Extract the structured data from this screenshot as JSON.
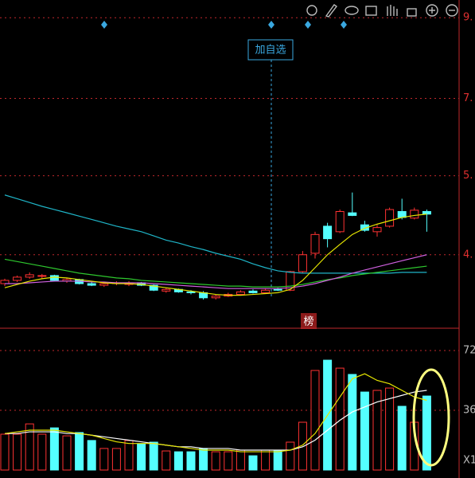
{
  "chart_data": {
    "type": "candlestick",
    "button": "加自选",
    "marker": "榜",
    "up_color": "#ff3232",
    "down_color": "#54ffff",
    "grid_color": "#c0282d",
    "log": true,
    "ylim": [
      3.42,
      9.51
    ],
    "yticks": [
      {
        "value": 9.0,
        "label": "9."
      },
      {
        "value": 7.0,
        "label": "7."
      },
      {
        "value": 5.5,
        "label": "5."
      },
      {
        "value": 4.3,
        "label": "4."
      }
    ],
    "open": [
      3.93,
      3.97,
      4.01,
      4.02,
      4.03,
      3.96,
      3.98,
      3.93,
      3.91,
      3.93,
      3.92,
      3.94,
      3.91,
      3.84,
      3.86,
      3.83,
      3.82,
      3.76,
      3.78,
      3.8,
      3.84,
      3.82,
      3.86,
      3.85,
      4.08,
      4.32,
      4.7,
      4.62,
      4.9,
      4.72,
      4.62,
      4.7,
      4.92,
      4.82,
      4.92
    ],
    "high": [
      3.99,
      4.03,
      4.07,
      4.05,
      4.04,
      4.0,
      3.99,
      3.95,
      3.95,
      3.96,
      3.96,
      3.95,
      3.92,
      3.88,
      3.87,
      3.85,
      3.84,
      3.8,
      3.82,
      3.85,
      3.86,
      3.87,
      3.88,
      4.09,
      4.35,
      4.62,
      4.75,
      4.95,
      5.22,
      4.78,
      4.72,
      4.98,
      5.12,
      4.98,
      4.95
    ],
    "low": [
      3.9,
      3.95,
      3.99,
      3.99,
      3.96,
      3.94,
      3.92,
      3.9,
      3.89,
      3.91,
      3.9,
      3.9,
      3.84,
      3.82,
      3.82,
      3.8,
      3.74,
      3.74,
      3.77,
      3.79,
      3.81,
      3.81,
      3.84,
      3.84,
      4.06,
      4.25,
      4.4,
      4.6,
      4.85,
      4.62,
      4.55,
      4.68,
      4.8,
      4.8,
      4.62
    ],
    "close": [
      3.97,
      4.01,
      4.04,
      4.03,
      3.97,
      3.98,
      3.93,
      3.91,
      3.93,
      3.94,
      3.94,
      3.91,
      3.85,
      3.86,
      3.83,
      3.82,
      3.76,
      3.78,
      3.8,
      3.83,
      3.82,
      3.85,
      3.85,
      4.08,
      4.3,
      4.58,
      4.52,
      4.92,
      4.86,
      4.64,
      4.68,
      4.95,
      4.83,
      4.94,
      4.88
    ],
    "ma": [
      {
        "color": "#1fb5c8",
        "values": [
          5.18,
          5.12,
          5.06,
          5.0,
          4.95,
          4.9,
          4.85,
          4.8,
          4.75,
          4.7,
          4.66,
          4.62,
          4.56,
          4.5,
          4.46,
          4.41,
          4.37,
          4.32,
          4.28,
          4.24,
          4.18,
          4.13,
          4.09,
          4.07,
          4.06,
          4.06,
          4.06,
          4.06,
          4.06,
          4.06,
          4.06,
          4.06,
          4.07,
          4.07,
          4.07
        ]
      },
      {
        "color": "#2ec82e",
        "values": [
          4.24,
          4.21,
          4.18,
          4.15,
          4.12,
          4.09,
          4.06,
          4.04,
          4.02,
          4.0,
          3.99,
          3.97,
          3.96,
          3.95,
          3.94,
          3.93,
          3.92,
          3.91,
          3.9,
          3.9,
          3.89,
          3.89,
          3.89,
          3.9,
          3.92,
          3.95,
          3.98,
          4.0,
          4.03,
          4.05,
          4.07,
          4.09,
          4.11,
          4.13,
          4.15
        ]
      },
      {
        "color": "#d060e0",
        "values": [
          3.93,
          3.93,
          3.94,
          3.95,
          3.96,
          3.96,
          3.96,
          3.95,
          3.95,
          3.94,
          3.94,
          3.94,
          3.93,
          3.92,
          3.91,
          3.9,
          3.89,
          3.88,
          3.87,
          3.87,
          3.87,
          3.87,
          3.87,
          3.88,
          3.9,
          3.93,
          3.97,
          4.01,
          4.06,
          4.1,
          4.14,
          4.18,
          4.22,
          4.26,
          4.3
        ]
      },
      {
        "color": "#e6e600",
        "values": [
          3.88,
          3.92,
          3.96,
          3.99,
          4.01,
          4.0,
          3.98,
          3.96,
          3.94,
          3.93,
          3.93,
          3.92,
          3.9,
          3.88,
          3.86,
          3.84,
          3.82,
          3.8,
          3.79,
          3.79,
          3.8,
          3.81,
          3.82,
          3.86,
          3.97,
          4.13,
          4.3,
          4.44,
          4.58,
          4.67,
          4.73,
          4.78,
          4.83,
          4.86,
          4.88
        ]
      }
    ],
    "volume_ylim": [
      0,
      79.2
    ],
    "volume_yticks": [
      36,
      72
    ],
    "volume_unit": "X1",
    "volume": [
      21.6,
      21.6,
      27.8,
      21.6,
      25.4,
      20.6,
      22.6,
      17.8,
      13,
      13,
      17.8,
      15.8,
      16.8,
      11.5,
      11,
      11,
      13,
      11,
      11,
      12,
      8.6,
      12,
      11.5,
      16.8,
      28.8,
      60,
      66.2,
      61.4,
      57.6,
      47,
      48,
      49.4,
      38.4,
      28.8,
      44.6
    ],
    "volume_ma": [
      {
        "color": "#ffffff",
        "values": [
          22,
          22,
          23,
          23,
          23,
          22,
          22,
          21,
          20,
          19,
          18,
          17,
          16,
          15,
          14,
          14,
          13,
          13,
          13,
          12,
          12,
          12,
          12,
          12,
          14,
          18,
          24,
          30,
          35,
          38,
          41,
          43,
          45,
          47,
          48
        ]
      },
      {
        "color": "#e6e600",
        "values": [
          22,
          23,
          24,
          24,
          24,
          23,
          22,
          21,
          19,
          17,
          16,
          16,
          16,
          15,
          14,
          13,
          12,
          12,
          12,
          11,
          11,
          11,
          11,
          12,
          15,
          22,
          33,
          44,
          55,
          58,
          54,
          52,
          48,
          44,
          42
        ]
      }
    ]
  }
}
